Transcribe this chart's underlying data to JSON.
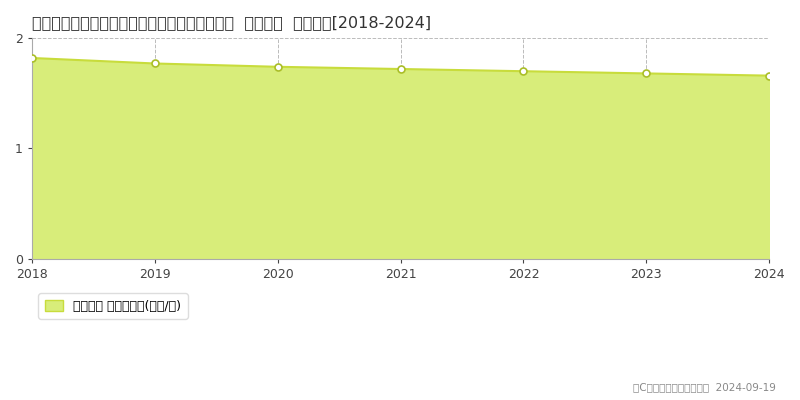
{
  "title": "奈良県宇陀郡曽爾村大字伊賀見２２４０番１外  基準地価  地価推移[2018-2024]",
  "years": [
    2018,
    2019,
    2020,
    2021,
    2022,
    2023,
    2024
  ],
  "values": [
    1.82,
    1.77,
    1.74,
    1.72,
    1.7,
    1.68,
    1.66
  ],
  "ylim": [
    0,
    2
  ],
  "yticks": [
    0,
    1,
    2
  ],
  "line_color": "#c8dc3c",
  "fill_color": "#d8ed7a",
  "fill_alpha": 1.0,
  "marker_color": "white",
  "marker_edge_color": "#aabe28",
  "marker_size": 5,
  "grid_color": "#bbbbbb",
  "background_color": "#ffffff",
  "legend_label": "基準地価 平均坪単価(万円/坪)",
  "copyright_text": "（C）土地価格ドットコム  2024-09-19",
  "title_fontsize": 11.5,
  "axis_fontsize": 9,
  "legend_fontsize": 9
}
